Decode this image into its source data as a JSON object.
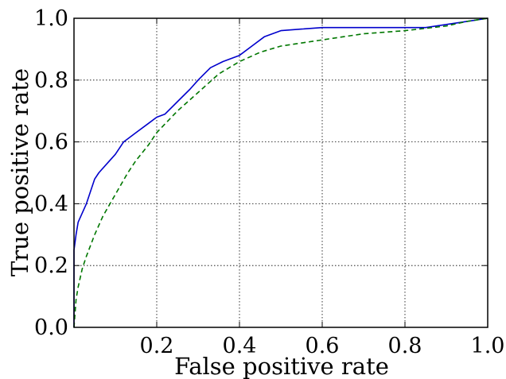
{
  "chart_data": {
    "type": "line",
    "title": "",
    "xlabel": "False positive rate",
    "ylabel": "True positive rate",
    "xlim": [
      0.0,
      1.0
    ],
    "ylim": [
      0.0,
      1.0
    ],
    "grid": true,
    "x_ticks": [
      0.2,
      0.4,
      0.6,
      0.8,
      1.0
    ],
    "x_tick_labels": [
      "0.2",
      "0.4",
      "0.6",
      "0.8",
      "1.0"
    ],
    "y_ticks": [
      0.0,
      0.2,
      0.4,
      0.6,
      0.8,
      1.0
    ],
    "y_tick_labels": [
      "0.0",
      "0.2",
      "0.4",
      "0.6",
      "0.8",
      "1.0"
    ],
    "series": [
      {
        "style": "solid",
        "color": "#0000cc",
        "x": [
          0.0,
          0.0,
          0.005,
          0.01,
          0.02,
          0.03,
          0.04,
          0.05,
          0.06,
          0.08,
          0.1,
          0.12,
          0.15,
          0.18,
          0.2,
          0.22,
          0.25,
          0.28,
          0.3,
          0.33,
          0.36,
          0.4,
          0.43,
          0.46,
          0.5,
          0.55,
          0.6,
          0.7,
          0.8,
          0.85,
          0.9,
          0.95,
          1.0
        ],
        "y": [
          0.0,
          0.25,
          0.3,
          0.34,
          0.37,
          0.4,
          0.44,
          0.48,
          0.5,
          0.53,
          0.56,
          0.6,
          0.63,
          0.66,
          0.68,
          0.69,
          0.73,
          0.77,
          0.8,
          0.84,
          0.86,
          0.88,
          0.91,
          0.94,
          0.96,
          0.965,
          0.97,
          0.97,
          0.97,
          0.97,
          0.98,
          0.99,
          1.0
        ]
      },
      {
        "style": "dashed",
        "color": "#007700",
        "x": [
          0.0,
          0.005,
          0.01,
          0.02,
          0.03,
          0.05,
          0.07,
          0.1,
          0.13,
          0.15,
          0.18,
          0.2,
          0.25,
          0.3,
          0.35,
          0.4,
          0.45,
          0.5,
          0.55,
          0.6,
          0.7,
          0.8,
          0.9,
          0.95,
          1.0
        ],
        "y": [
          0.0,
          0.09,
          0.13,
          0.19,
          0.23,
          0.3,
          0.36,
          0.43,
          0.5,
          0.54,
          0.59,
          0.63,
          0.7,
          0.76,
          0.82,
          0.86,
          0.89,
          0.91,
          0.92,
          0.93,
          0.95,
          0.96,
          0.975,
          0.99,
          1.0
        ]
      }
    ]
  }
}
